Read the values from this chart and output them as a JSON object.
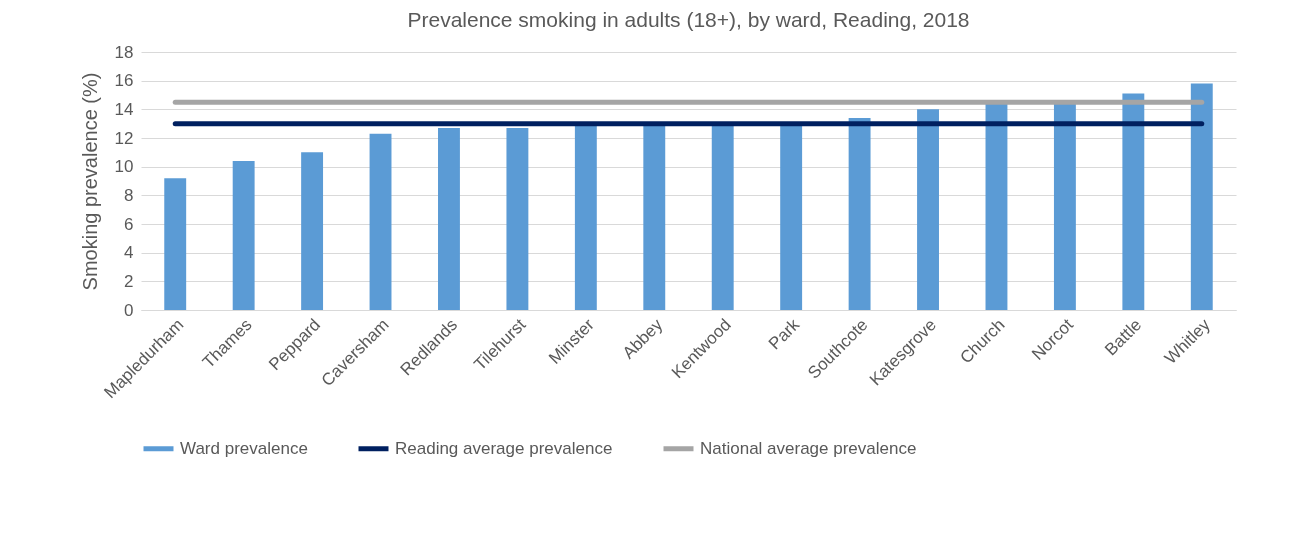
{
  "chart_data": {
    "type": "bar",
    "title": "Prevalence smoking in adults (18+), by ward, Reading, 2018",
    "ylabel": "Smoking prevalence (%)",
    "categories": [
      "Mapledurham",
      "Thames",
      "Peppard",
      "Caversham",
      "Redlands",
      "Tilehurst",
      "Minster",
      "Abbey",
      "Kentwood",
      "Park",
      "Southcote",
      "Katesgrove",
      "Church",
      "Norcot",
      "Battle",
      "Whitley"
    ],
    "series": [
      {
        "name": "Ward prevalence",
        "color": "#5b9bd5",
        "values": [
          9.2,
          10.4,
          11.0,
          12.3,
          12.7,
          12.7,
          13.0,
          13.0,
          13.0,
          13.0,
          13.4,
          14.0,
          14.4,
          14.4,
          15.1,
          15.8
        ]
      },
      {
        "name": "Reading average prevalence",
        "type": "line",
        "color": "#002060",
        "values": [
          13.0,
          13.0,
          13.0,
          13.0,
          13.0,
          13.0,
          13.0,
          13.0,
          13.0,
          13.0,
          13.0,
          13.0,
          13.0,
          13.0,
          13.0,
          13.0
        ]
      },
      {
        "name": "National average prevalence",
        "type": "line",
        "color": "#a5a5a5",
        "values": [
          14.5,
          14.5,
          14.5,
          14.5,
          14.5,
          14.5,
          14.5,
          14.5,
          14.5,
          14.5,
          14.5,
          14.5,
          14.5,
          14.5,
          14.5,
          14.5
        ]
      }
    ],
    "ylim": [
      0,
      18
    ],
    "yticks": [
      0,
      2,
      4,
      6,
      8,
      10,
      12,
      14,
      16,
      18
    ],
    "grid": "y",
    "legend": "bottom",
    "marker": "none",
    "line_style": "solid"
  }
}
